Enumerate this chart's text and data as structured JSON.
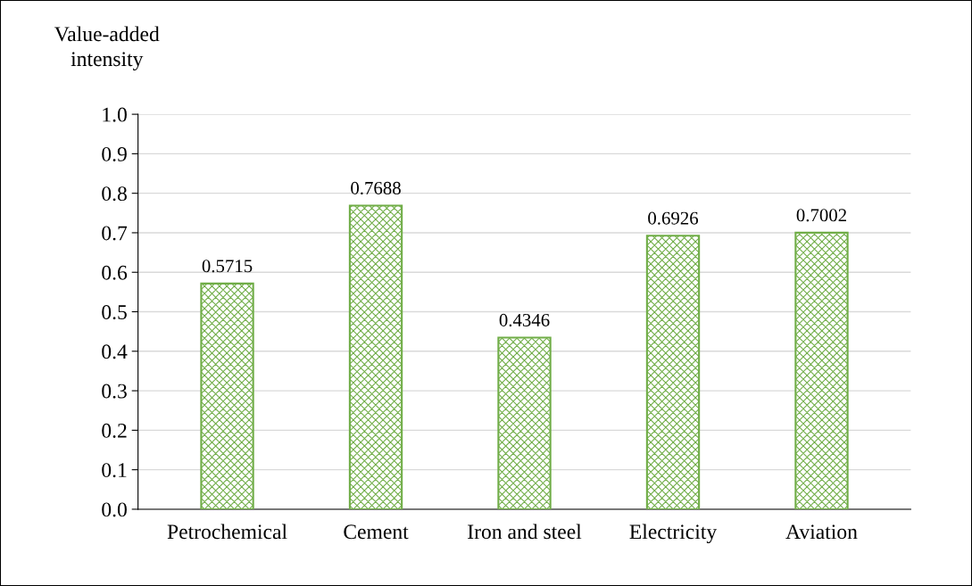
{
  "chart_data": {
    "type": "bar",
    "ylabel": "Value-added\nintensity",
    "categories": [
      "Petrochemical",
      "Cement",
      "Iron and steel",
      "Electricity",
      "Aviation"
    ],
    "values": [
      0.5715,
      0.7688,
      0.4346,
      0.6926,
      0.7002
    ],
    "color": "#70ad47",
    "ylim": [
      0,
      1.0
    ],
    "yticks": [
      {
        "value": 0,
        "label": "0.0"
      },
      0.1,
      0.2,
      0.3,
      0.4,
      0.5,
      0.6,
      0.7,
      0.8,
      0.9,
      {
        "value": 1.0,
        "label": "1.0"
      }
    ],
    "grid": "y",
    "data_labels": true
  }
}
